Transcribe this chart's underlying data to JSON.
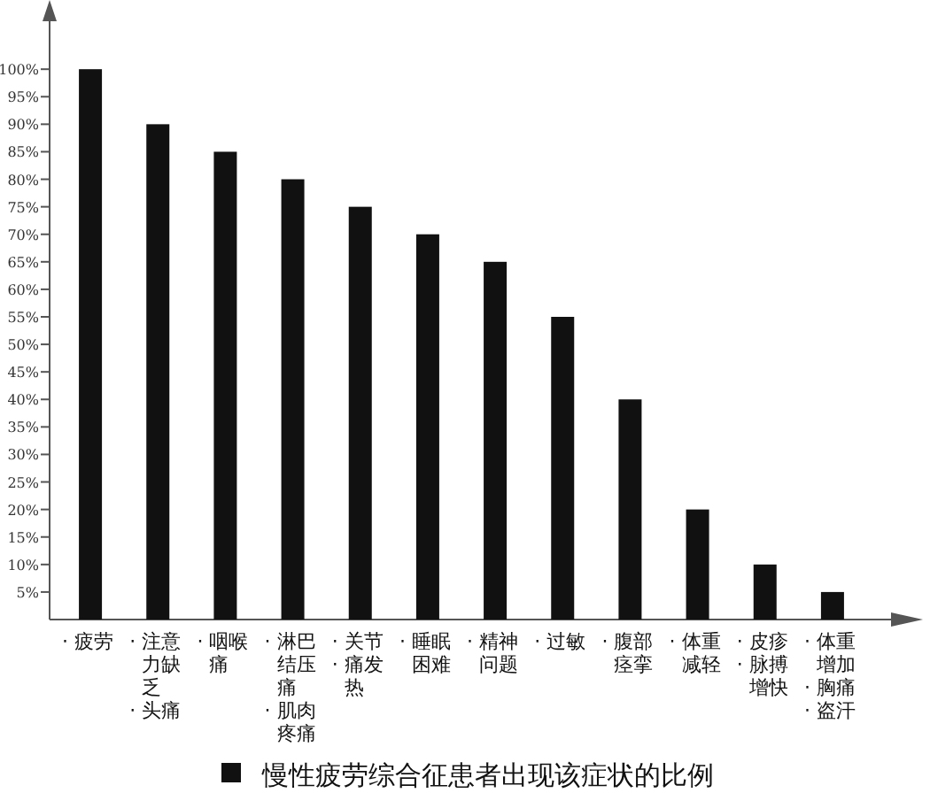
{
  "chart_data": {
    "type": "bar",
    "categories": [
      "· 疲劳",
      "· 注意力缺乏 · 头痛",
      "· 咽喉痛",
      "· 淋巴结压痛 · 肌肉疼痛",
      "· 关节 · 痛发热",
      "· 睡眠困难",
      "· 精神问题",
      "· 过敏",
      "· 腹部痉挛",
      "· 体重减轻",
      "· 皮疹 · 脉搏增快",
      "· 体重增加 · 胸痛 · 盗汗"
    ],
    "series": [
      {
        "name": "慢性疲劳综合征患者出现该症状的比例",
        "color": "#111111",
        "values": [
          100,
          90,
          85,
          80,
          75,
          70,
          65,
          55,
          40,
          20,
          10,
          5
        ]
      }
    ],
    "ylim": [
      0,
      110
    ],
    "yticks": [
      {
        "value": 5,
        "label": "5%"
      },
      {
        "value": 10,
        "label": "10%"
      },
      {
        "value": 15,
        "label": "15%"
      },
      {
        "value": 20,
        "label": "20%"
      },
      {
        "value": 25,
        "label": "25%"
      },
      {
        "value": 30,
        "label": "30%"
      },
      {
        "value": 35,
        "label": "35%"
      },
      {
        "value": 40,
        "label": "40%"
      },
      {
        "value": 45,
        "label": "45%"
      },
      {
        "value": 50,
        "label": "50%"
      },
      {
        "value": 55,
        "label": "55%"
      },
      {
        "value": 60,
        "label": "60%"
      },
      {
        "value": 65,
        "label": "65%"
      },
      {
        "value": 70,
        "label": "70%"
      },
      {
        "value": 75,
        "label": "75%"
      },
      {
        "value": 80,
        "label": "80%"
      },
      {
        "value": 85,
        "label": "85%"
      },
      {
        "value": 90,
        "label": "90%"
      },
      {
        "value": 95,
        "label": "95%"
      },
      {
        "value": 100,
        "label": "100%"
      }
    ],
    "grid": false,
    "legend": "bottom"
  }
}
